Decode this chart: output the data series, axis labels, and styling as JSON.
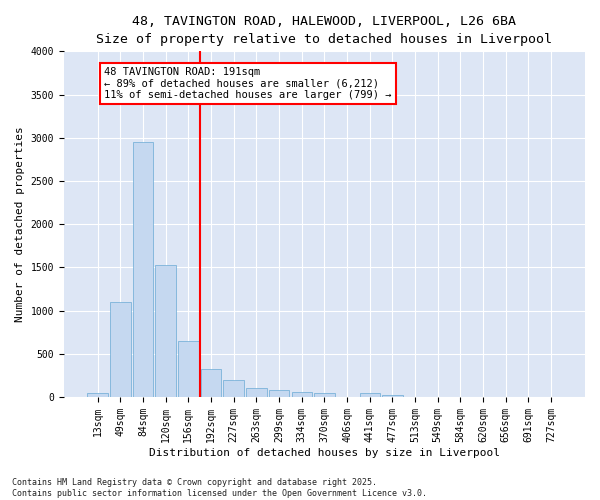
{
  "title1": "48, TAVINGTON ROAD, HALEWOOD, LIVERPOOL, L26 6BA",
  "title2": "Size of property relative to detached houses in Liverpool",
  "xlabel": "Distribution of detached houses by size in Liverpool",
  "ylabel": "Number of detached properties",
  "bar_labels": [
    "13sqm",
    "49sqm",
    "84sqm",
    "120sqm",
    "156sqm",
    "192sqm",
    "227sqm",
    "263sqm",
    "299sqm",
    "334sqm",
    "370sqm",
    "406sqm",
    "441sqm",
    "477sqm",
    "513sqm",
    "549sqm",
    "584sqm",
    "620sqm",
    "656sqm",
    "691sqm",
    "727sqm"
  ],
  "bar_values": [
    50,
    1100,
    2950,
    1530,
    650,
    320,
    200,
    100,
    80,
    60,
    50,
    5,
    50,
    20,
    5,
    5,
    5,
    5,
    5,
    5,
    5
  ],
  "bar_color": "#c5d8f0",
  "bar_edge_color": "#6aaad4",
  "vline_x_index": 4.5,
  "vline_color": "red",
  "annotation_text": "48 TAVINGTON ROAD: 191sqm\n← 89% of detached houses are smaller (6,212)\n11% of semi-detached houses are larger (799) →",
  "annotation_box_color": "white",
  "annotation_box_edge_color": "red",
  "ylim": [
    0,
    4000
  ],
  "yticks": [
    0,
    500,
    1000,
    1500,
    2000,
    2500,
    3000,
    3500,
    4000
  ],
  "background_color": "#dde6f5",
  "footer_text": "Contains HM Land Registry data © Crown copyright and database right 2025.\nContains public sector information licensed under the Open Government Licence v3.0.",
  "title_fontsize": 9.5,
  "title2_fontsize": 9,
  "axis_label_fontsize": 8,
  "tick_fontsize": 7,
  "footer_fontsize": 6,
  "annotation_fontsize": 7.5
}
